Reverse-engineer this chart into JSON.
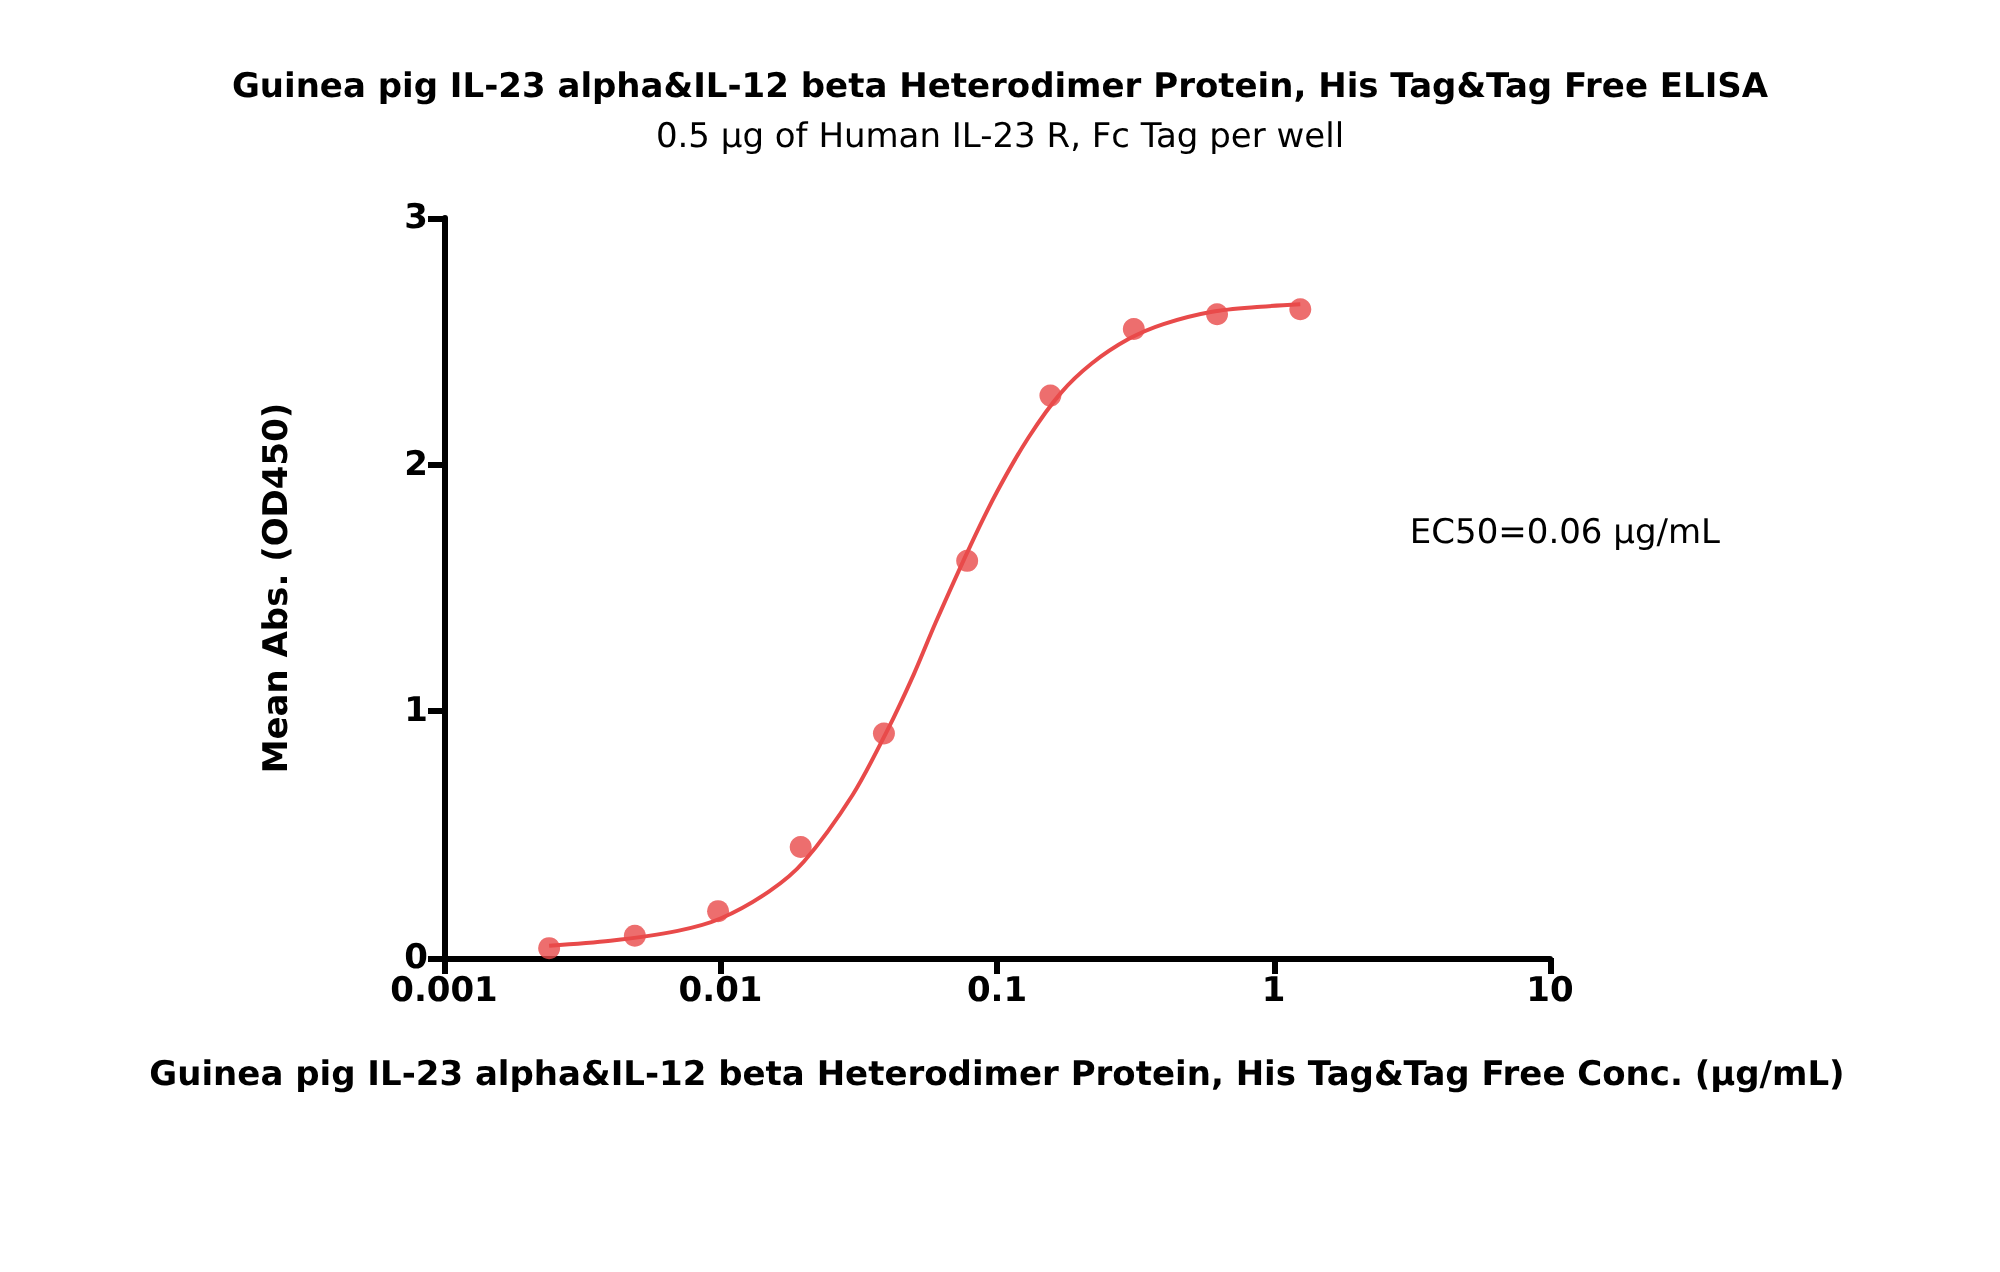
{
  "chart_data": {
    "type": "scatter",
    "title": "Guinea pig IL-23 alpha&IL-12 beta Heterodimer Protein, His Tag&Tag Free ELISA",
    "subtitle": "0.5 µg of Human IL-23 R, Fc Tag per well",
    "xlabel": "Guinea pig IL-23 alpha&IL-12 beta Heterodimer Protein, His Tag&Tag Free Conc. (µg/mL)",
    "ylabel": "Mean Abs. (OD450)",
    "annotations": [
      "EC50=0.06 µg/mL"
    ],
    "series": [
      {
        "color": "#e84a4a",
        "marker": "circle",
        "x": [
          0.0024,
          0.0049,
          0.0098,
          0.0195,
          0.039,
          0.078,
          0.156,
          0.3125,
          0.625,
          1.25
        ],
        "values": [
          0.04,
          0.09,
          0.19,
          0.45,
          0.91,
          1.61,
          2.28,
          2.55,
          2.61,
          2.63
        ]
      },
      {
        "type": "line",
        "color": "#e84a4a",
        "marker": "none",
        "line_style": "solid",
        "x": [
          0.0024,
          0.004,
          0.007,
          0.01,
          0.015,
          0.02,
          0.03,
          0.04,
          0.05,
          0.06,
          0.08,
          0.1,
          0.13,
          0.17,
          0.22,
          0.3,
          0.4,
          0.6,
          0.9,
          1.25
        ],
        "values": [
          0.05,
          0.07,
          0.11,
          0.16,
          0.27,
          0.39,
          0.66,
          0.92,
          1.15,
          1.36,
          1.67,
          1.89,
          2.11,
          2.29,
          2.41,
          2.51,
          2.57,
          2.62,
          2.64,
          2.65
        ]
      }
    ],
    "log": "x",
    "xlim": [
      0.001,
      10
    ],
    "xticks": [
      0.001,
      0.01,
      0.1,
      1,
      10
    ],
    "ylim": [
      0,
      3
    ],
    "yticks": [
      0,
      1,
      2,
      3
    ],
    "grid": false
  }
}
